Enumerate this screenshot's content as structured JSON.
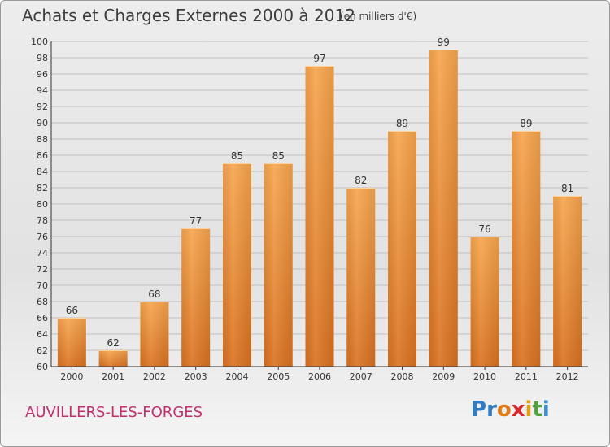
{
  "title": "Achats et Charges Externes 2000 à 2012",
  "unit": "(en milliers d'€)",
  "commune": "AUVILLERS-LES-FORGES",
  "logo": {
    "text": "Proxiti",
    "letter_colors": [
      "#2f7dc4",
      "#2f7dc4",
      "#e07a16",
      "#d6282f",
      "#e0a010",
      "#4ea13a",
      "#3f8fd0"
    ]
  },
  "colors": {
    "bar_light": "#f7a54d",
    "bar_dark": "#d97120",
    "grid": "#bfbfbf",
    "axis": "#333333"
  },
  "chart_data": {
    "type": "bar",
    "categories": [
      "2000",
      "2001",
      "2002",
      "2003",
      "2004",
      "2005",
      "2006",
      "2007",
      "2008",
      "2009",
      "2010",
      "2011",
      "2012"
    ],
    "values": [
      66,
      62,
      68,
      77,
      85,
      85,
      97,
      82,
      89,
      99,
      76,
      89,
      81
    ],
    "ylim": [
      60,
      100
    ],
    "ytick_step": 2,
    "grid": true
  }
}
